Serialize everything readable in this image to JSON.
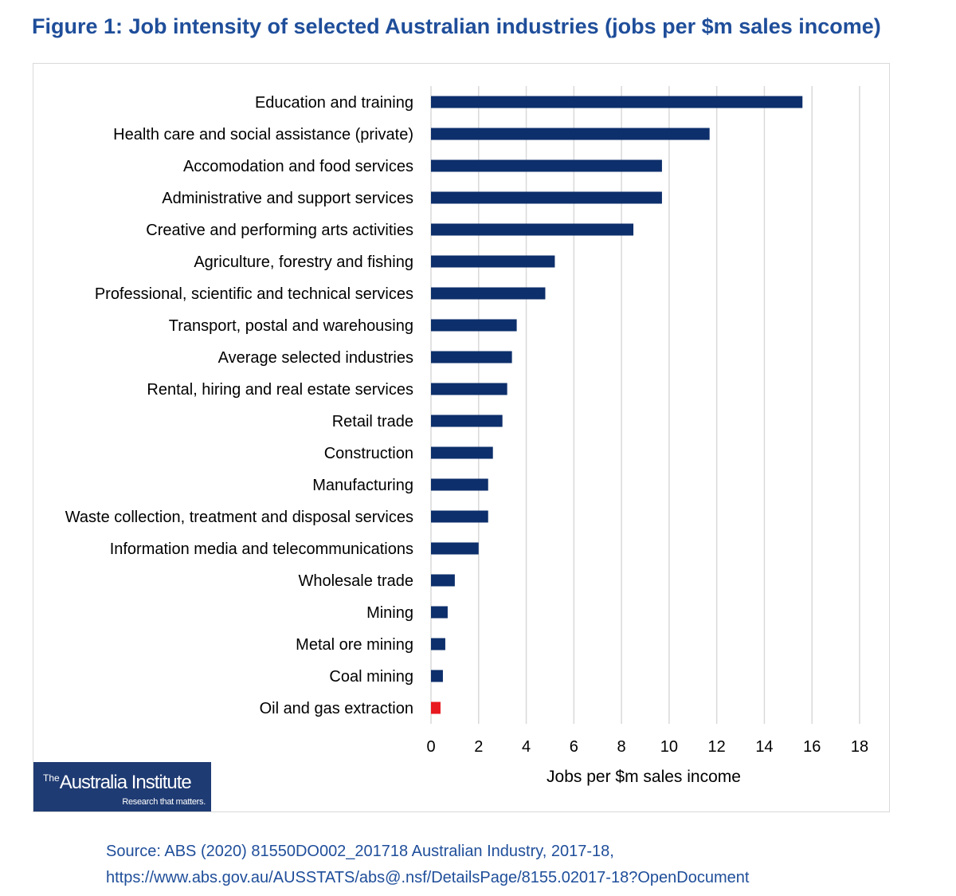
{
  "figure": {
    "title": "Figure 1: Job intensity of selected Australian industries (jobs per $m sales income)"
  },
  "logo": {
    "prefix": "The",
    "name": "Australia Institute",
    "tagline": "Research that matters."
  },
  "source": {
    "line1": "Source: ABS (2020) 81550DO002_201718 Australian Industry, 2017-18,",
    "line2": "https://www.abs.gov.au/AUSSTATS/abs@.nsf/DetailsPage/8155.02017-18?OpenDocument"
  },
  "colors": {
    "bar": "#0d2f6b",
    "highlight": "#e8191f",
    "grid": "#d9d9d9",
    "title": "#1f4e9a"
  },
  "chart_data": {
    "type": "bar",
    "orientation": "horizontal",
    "categories": [
      "Education and training",
      "Health care and social assistance (private)",
      "Accomodation and food services",
      "Administrative and support services",
      "Creative and performing arts activities",
      "Agriculture, forestry and fishing",
      "Professional, scientific and technical services",
      "Transport, postal and warehousing",
      "Average selected industries",
      "Rental, hiring and real estate services",
      "Retail trade",
      "Construction",
      "Manufacturing",
      "Waste collection, treatment and disposal services",
      "Information media and telecommunications",
      "Wholesale trade",
      "Mining",
      "Metal ore mining",
      "Coal mining",
      "Oil and gas extraction"
    ],
    "values": [
      15.6,
      11.7,
      9.7,
      9.7,
      8.5,
      5.2,
      4.8,
      3.6,
      3.4,
      3.2,
      3.0,
      2.6,
      2.4,
      2.4,
      2.0,
      1.0,
      0.7,
      0.6,
      0.5,
      0.4
    ],
    "highlight_category": "Oil and gas extraction",
    "xlabel": "Jobs per $m sales income",
    "ylabel": "",
    "xlim": [
      0,
      18
    ],
    "xticks": [
      0,
      2,
      4,
      6,
      8,
      10,
      12,
      14,
      16,
      18
    ],
    "grid": "vertical"
  }
}
